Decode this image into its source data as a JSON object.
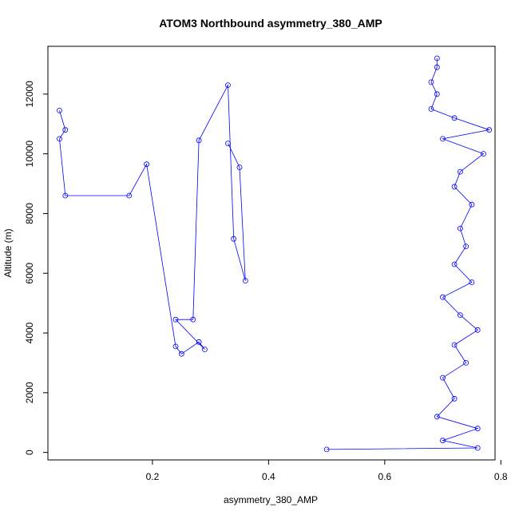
{
  "chart_data": {
    "type": "scatter",
    "title": "ATOM3 Northbound asymmetry_380_AMP",
    "xlabel": "asymmetry_380_AMP",
    "ylabel": "Altitude (m)",
    "xlim": [
      0.02,
      0.79
    ],
    "ylim": [
      -250,
      13600
    ],
    "x_ticks": [
      "0.2",
      "0.4",
      "0.6",
      "0.8"
    ],
    "y_ticks": [
      "0",
      "2000",
      "4000",
      "6000",
      "8000",
      "10000",
      "12000"
    ],
    "color": "#0000ff",
    "grid": false,
    "lines_connecting_points": true,
    "series": [
      {
        "profile": "outline",
        "points": [
          [
            0.5,
            100
          ],
          [
            0.76,
            150
          ],
          [
            0.7,
            400
          ],
          [
            0.76,
            800
          ],
          [
            0.69,
            1200
          ],
          [
            0.72,
            1800
          ],
          [
            0.7,
            2500
          ],
          [
            0.74,
            3000
          ],
          [
            0.72,
            3600
          ],
          [
            0.76,
            4100
          ],
          [
            0.73,
            4600
          ],
          [
            0.7,
            5200
          ],
          [
            0.75,
            5700
          ],
          [
            0.72,
            6300
          ],
          [
            0.74,
            6900
          ],
          [
            0.73,
            7500
          ],
          [
            0.75,
            8300
          ],
          [
            0.72,
            8900
          ],
          [
            0.73,
            9400
          ],
          [
            0.77,
            10000
          ],
          [
            0.7,
            10500
          ],
          [
            0.78,
            10800
          ],
          [
            0.72,
            11200
          ],
          [
            0.68,
            11500
          ],
          [
            0.69,
            12000
          ],
          [
            0.68,
            12400
          ],
          [
            0.69,
            12900
          ],
          [
            0.69,
            13200
          ]
        ]
      },
      {
        "profile": "outliers",
        "points": [
          [
            0.04,
            11450
          ],
          [
            0.05,
            10800
          ],
          [
            0.04,
            10500
          ],
          [
            0.05,
            8600
          ],
          [
            0.16,
            8600
          ],
          [
            0.19,
            9650
          ],
          [
            0.24,
            3550
          ],
          [
            0.25,
            3300
          ],
          [
            0.28,
            3700
          ],
          [
            0.29,
            3450
          ],
          [
            0.24,
            4450
          ],
          [
            0.27,
            4450
          ],
          [
            0.28,
            10450
          ],
          [
            0.33,
            12300
          ],
          [
            0.34,
            7150
          ],
          [
            0.36,
            5750
          ],
          [
            0.35,
            9550
          ],
          [
            0.33,
            10350
          ]
        ]
      }
    ]
  }
}
